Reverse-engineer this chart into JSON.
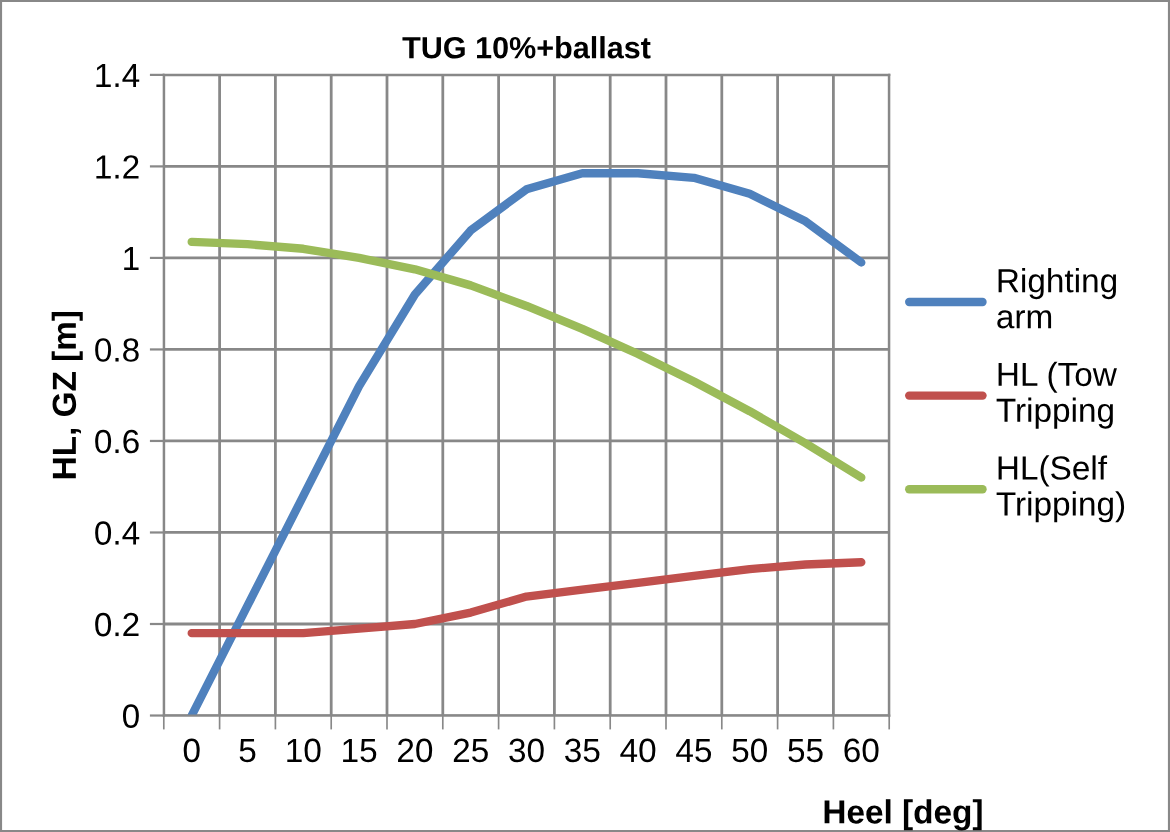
{
  "chart_data": {
    "type": "line",
    "title": "TUG 10%+ballast",
    "xlabel": "Heel [deg]",
    "ylabel": "HL, GZ [m]",
    "categories": [
      "0",
      "5",
      "10",
      "15",
      "20",
      "25",
      "30",
      "35",
      "40",
      "45",
      "50",
      "55",
      "60"
    ],
    "series": [
      {
        "name": "Righting arm",
        "color": "#4f81bd",
        "values": [
          0,
          0.24,
          0.48,
          0.72,
          0.92,
          1.06,
          1.15,
          1.185,
          1.185,
          1.175,
          1.14,
          1.08,
          0.99
        ]
      },
      {
        "name": "HL (Tow Tripping",
        "color": "#c0504d",
        "values": [
          0.18,
          0.18,
          0.18,
          0.19,
          0.2,
          0.225,
          0.26,
          0.275,
          0.29,
          0.305,
          0.32,
          0.33,
          0.335
        ]
      },
      {
        "name": "HL(Self Tripping)",
        "color": "#9bbb59",
        "values": [
          1.035,
          1.03,
          1.02,
          1.0,
          0.975,
          0.94,
          0.895,
          0.845,
          0.79,
          0.73,
          0.665,
          0.595,
          0.52
        ]
      }
    ],
    "ylim": [
      0,
      1.4
    ],
    "yticks": [
      0,
      0.2,
      0.4,
      0.6,
      0.8,
      1,
      1.2,
      1.4
    ],
    "grid": true,
    "legend": "right",
    "marker": "none",
    "line_style": "solid"
  }
}
